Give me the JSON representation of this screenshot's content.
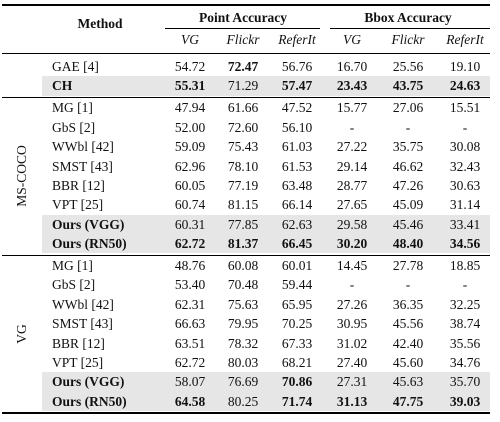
{
  "header": {
    "method": "Method",
    "groups": [
      "Point Accuracy",
      "Bbox Accuracy"
    ],
    "columns": [
      "VG",
      "Flickr",
      "ReferIt",
      "VG",
      "Flickr",
      "ReferIt"
    ]
  },
  "sections": [
    {
      "rows": [
        {
          "cells": [
            "GAE [4]",
            "54.72",
            "72.47",
            "56.76",
            "16.70",
            "25.56",
            "19.10"
          ],
          "bold": [
            2
          ]
        },
        {
          "cells": [
            "CH",
            "55.31",
            "71.29",
            "57.47",
            "23.43",
            "43.75",
            "24.63"
          ],
          "bold": [
            0,
            1,
            3,
            4,
            5,
            6
          ],
          "shaded": true
        }
      ]
    },
    {
      "label": "MS-COCO",
      "rows": [
        {
          "cells": [
            "MG [1]",
            "47.94",
            "61.66",
            "47.52",
            "15.77",
            "27.06",
            "15.51"
          ]
        },
        {
          "cells": [
            "GbS [2]",
            "52.00",
            "72.60",
            "56.10",
            "-",
            "-",
            "-"
          ]
        },
        {
          "cells": [
            "WWbl [42]",
            "59.09",
            "75.43",
            "61.03",
            "27.22",
            "35.75",
            "30.08"
          ]
        },
        {
          "cells": [
            "SMST [43]",
            "62.96",
            "78.10",
            "61.53",
            "29.14",
            "46.62",
            "32.43"
          ]
        },
        {
          "cells": [
            "BBR [12]",
            "60.05",
            "77.19",
            "63.48",
            "28.77",
            "47.26",
            "30.63"
          ]
        },
        {
          "cells": [
            "VPT [25]",
            "60.74",
            "81.15",
            "66.14",
            "27.65",
            "45.09",
            "31.14"
          ]
        },
        {
          "cells": [
            "Ours (VGG)",
            "60.31",
            "77.85",
            "62.63",
            "29.58",
            "45.46",
            "33.41"
          ],
          "bold": [
            0
          ],
          "shaded": true
        },
        {
          "cells": [
            "Ours (RN50)",
            "62.72",
            "81.37",
            "66.45",
            "30.20",
            "48.40",
            "34.56"
          ],
          "bold": [
            0,
            1,
            2,
            3,
            4,
            5,
            6
          ],
          "shaded": true
        }
      ]
    },
    {
      "label": "VG",
      "rows": [
        {
          "cells": [
            "MG [1]",
            "48.76",
            "60.08",
            "60.01",
            "14.45",
            "27.78",
            "18.85"
          ]
        },
        {
          "cells": [
            "GbS [2]",
            "53.40",
            "70.48",
            "59.44",
            "-",
            "-",
            "-"
          ]
        },
        {
          "cells": [
            "WWbl [42]",
            "62.31",
            "75.63",
            "65.95",
            "27.26",
            "36.35",
            "32.25"
          ]
        },
        {
          "cells": [
            "SMST [43]",
            "66.63",
            "79.95",
            "70.25",
            "30.95",
            "45.56",
            "38.74"
          ]
        },
        {
          "cells": [
            "BBR [12]",
            "63.51",
            "78.32",
            "67.33",
            "31.02",
            "42.40",
            "35.56"
          ]
        },
        {
          "cells": [
            "VPT [25]",
            "62.72",
            "80.03",
            "68.21",
            "27.40",
            "45.60",
            "34.76"
          ]
        },
        {
          "cells": [
            "Ours (VGG)",
            "58.07",
            "76.69",
            "70.86",
            "27.31",
            "45.63",
            "35.70"
          ],
          "bold": [
            0,
            3
          ],
          "shaded": true
        },
        {
          "cells": [
            "Ours (RN50)",
            "64.58",
            "80.25",
            "71.74",
            "31.13",
            "47.75",
            "39.03"
          ],
          "bold": [
            0,
            1,
            3,
            4,
            5,
            6
          ],
          "shaded": true
        }
      ]
    }
  ]
}
